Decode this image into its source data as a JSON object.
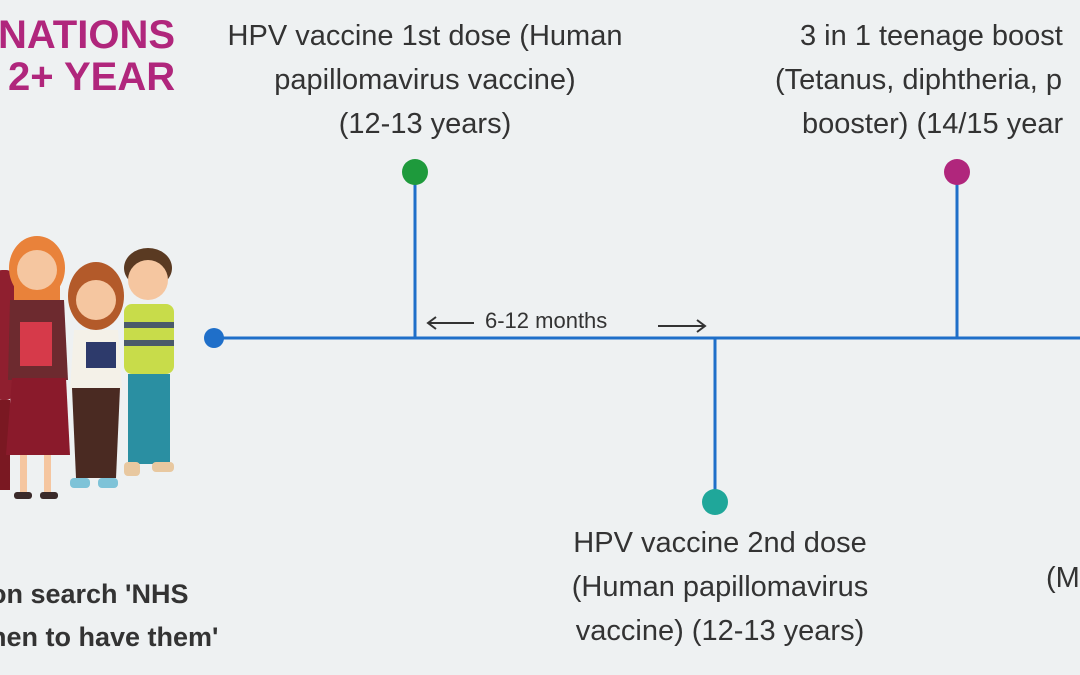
{
  "header": {
    "title_line1": "NATIONS",
    "title_line2": "2+ YEAR",
    "title_color": "#b0267c"
  },
  "timeline": {
    "line_color": "#1f6fc9",
    "events": [
      {
        "id": "hpv1",
        "lines": [
          "HPV vaccine 1st dose (Human",
          "papillomavirus vaccine)",
          "(12-13 years)"
        ],
        "color": "#1e9a3c"
      },
      {
        "id": "hpv2",
        "lines": [
          "HPV vaccine 2nd dose",
          "(Human papillomavirus",
          "vaccine)  (12-13 years)"
        ],
        "color": "#1fa79a"
      },
      {
        "id": "booster",
        "lines": [
          "3 in 1 teenage boost",
          "(Tetanus, diphtheria, p",
          "booster) (14/15 year"
        ],
        "color": "#b0267c"
      },
      {
        "id": "partial",
        "lines": [
          "(M"
        ]
      }
    ],
    "interval_label": "6-12 months",
    "start_dot_color": "#1f6fc9"
  },
  "footer": {
    "line1": "on search 'NHS",
    "line2": "hen to have them'"
  }
}
